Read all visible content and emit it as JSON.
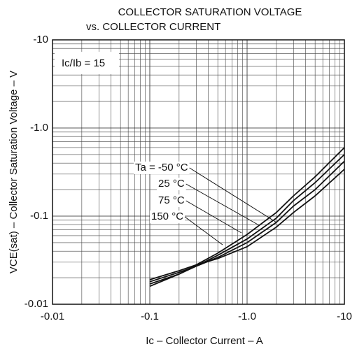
{
  "chart_data": {
    "type": "line",
    "title": "COLLECTOR SATURATION VOLTAGE",
    "subtitle": "vs. COLLECTOR CURRENT",
    "x_label": "Ic – Collector Current – A",
    "y_label": "VCE(sat) – Collector Saturation Voltage – V",
    "annotation": "Ic/Ib = 15",
    "x": [
      -0.1,
      -0.2,
      -0.3,
      -0.5,
      -1,
      -2,
      -3,
      -5,
      -10
    ],
    "series": [
      {
        "name": "Ta = -50 °C",
        "color": "#111111",
        "values": [
          -0.016,
          -0.022,
          -0.028,
          -0.038,
          -0.062,
          -0.11,
          -0.17,
          -0.28,
          -0.6
        ]
      },
      {
        "name": "25 °C",
        "color": "#111111",
        "values": [
          -0.017,
          -0.022,
          -0.027,
          -0.036,
          -0.055,
          -0.095,
          -0.15,
          -0.24,
          -0.5
        ]
      },
      {
        "name": "75 °C",
        "color": "#111111",
        "values": [
          -0.018,
          -0.023,
          -0.027,
          -0.034,
          -0.05,
          -0.085,
          -0.13,
          -0.2,
          -0.42
        ]
      },
      {
        "name": "150 °C",
        "color": "#111111",
        "values": [
          -0.019,
          -0.024,
          -0.028,
          -0.033,
          -0.045,
          -0.075,
          -0.11,
          -0.17,
          -0.34
        ]
      }
    ],
    "xlim": [
      -0.01,
      -10
    ],
    "ylim": [
      -0.01,
      -10
    ],
    "xticks": [
      -0.01,
      -0.1,
      {
        "value": -1,
        "label": "-1.0"
      },
      -10
    ],
    "yticks": [
      -0.01,
      -0.1,
      {
        "value": -1,
        "label": "-1.0"
      },
      -10
    ],
    "log_scale": true,
    "grid": true,
    "minor_grid": true
  }
}
